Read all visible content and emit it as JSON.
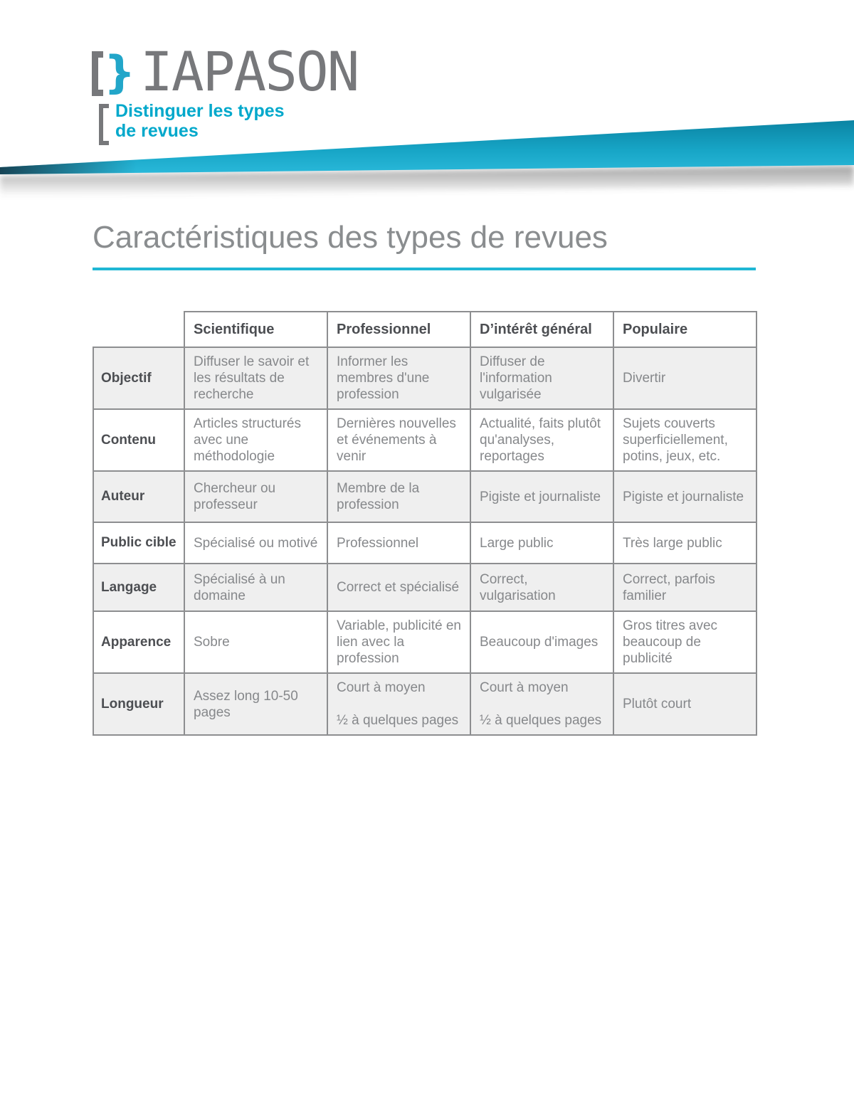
{
  "logo": {
    "bracket": "[",
    "brace": "}",
    "text": "IAPASON"
  },
  "subtitle": {
    "line1": "Distinguer les types",
    "line2": "de revues"
  },
  "title": "Caractéristiques des types de revues",
  "colors": {
    "brand_teal": "#00a8cb",
    "band_teal_light": "#2ab9da",
    "band_teal_dark": "#0b84a3",
    "rule_teal": "#1fb7d4",
    "logo_gray": "#77787b",
    "title_gray": "#8a8d8f",
    "table_border_gray": "#8d8e90",
    "table_shaded_bg": "#efefef",
    "table_label_text": "#4c4e52",
    "table_cell_text": "#86888b"
  },
  "table": {
    "columns": [
      "Scientifique",
      "Professionnel",
      "D’intérêt général",
      "Populaire"
    ],
    "rows": [
      {
        "label": "Objectif",
        "cells": [
          "Diffuser le savoir et les résultats de recherche",
          "Informer les membres d'une profession",
          "Diffuser de l'information vulgarisée",
          "Divertir"
        ]
      },
      {
        "label": "Contenu",
        "cells": [
          "Articles structurés avec une méthodologie",
          "Dernières nouvelles et événements à venir",
          "Actualité, faits plutôt qu'analyses, reportages",
          "Sujets couverts superficiellement, potins, jeux, etc."
        ]
      },
      {
        "label": "Auteur",
        "cells": [
          "Chercheur ou professeur",
          "Membre de la profession",
          "Pigiste et journaliste",
          "Pigiste et journaliste"
        ]
      },
      {
        "label": "Public cible",
        "cells": [
          "Spécialisé ou motivé",
          "Professionnel",
          "Large public",
          "Très large public"
        ]
      },
      {
        "label": "Langage",
        "cells": [
          "Spécialisé à un domaine",
          "Correct et spécialisé",
          "Correct, vulgarisation",
          "Correct, parfois familier"
        ]
      },
      {
        "label": "Apparence",
        "cells": [
          "Sobre",
          "Variable, publicité en lien avec la profession",
          "Beaucoup d'images",
          "Gros titres avec beaucoup de publicité"
        ]
      },
      {
        "label": "Longueur",
        "cells": [
          "Assez long 10-50 pages",
          "Court à moyen\n\n½ à quelques pages",
          "Court à moyen\n\n½ à quelques pages",
          "Plutôt court"
        ]
      }
    ]
  }
}
